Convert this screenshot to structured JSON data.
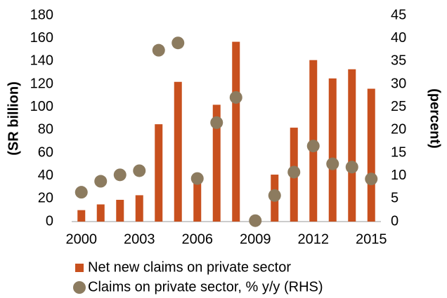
{
  "chart_data": {
    "type": "bar",
    "categories": [
      "2000",
      null,
      null,
      "2003",
      null,
      null,
      "2006",
      null,
      null,
      "2009",
      null,
      null,
      "2012",
      null,
      null,
      "2015"
    ],
    "series": [
      {
        "name": "Net new claims on private sector",
        "color": "#c8501e",
        "type": "bar",
        "values": [
          10,
          15,
          19,
          23,
          85,
          122,
          38,
          102,
          157,
          0,
          41,
          82,
          141,
          125,
          133,
          116
        ]
      },
      {
        "name": "Claims on private sector, % y/y (RHS)",
        "color": "#8c7b5f",
        "type": "scatter",
        "axis": "y2",
        "values": [
          6.4,
          8.8,
          10.2,
          11.1,
          37.4,
          39,
          9.4,
          21.6,
          27.1,
          0.2,
          5.7,
          10.8,
          16.5,
          12.6,
          11.9,
          9.3
        ]
      }
    ],
    "ylabel": "(SR billion)",
    "y2label": "(percent)",
    "ylim": [
      0,
      180
    ],
    "yticks": [
      0,
      20,
      40,
      60,
      80,
      100,
      120,
      140,
      160,
      180
    ],
    "y2lim": [
      0,
      45
    ],
    "y2ticks": [
      0,
      5,
      10,
      15,
      20,
      25,
      30,
      35,
      40,
      45
    ],
    "grid": false,
    "legend": "bottom"
  }
}
